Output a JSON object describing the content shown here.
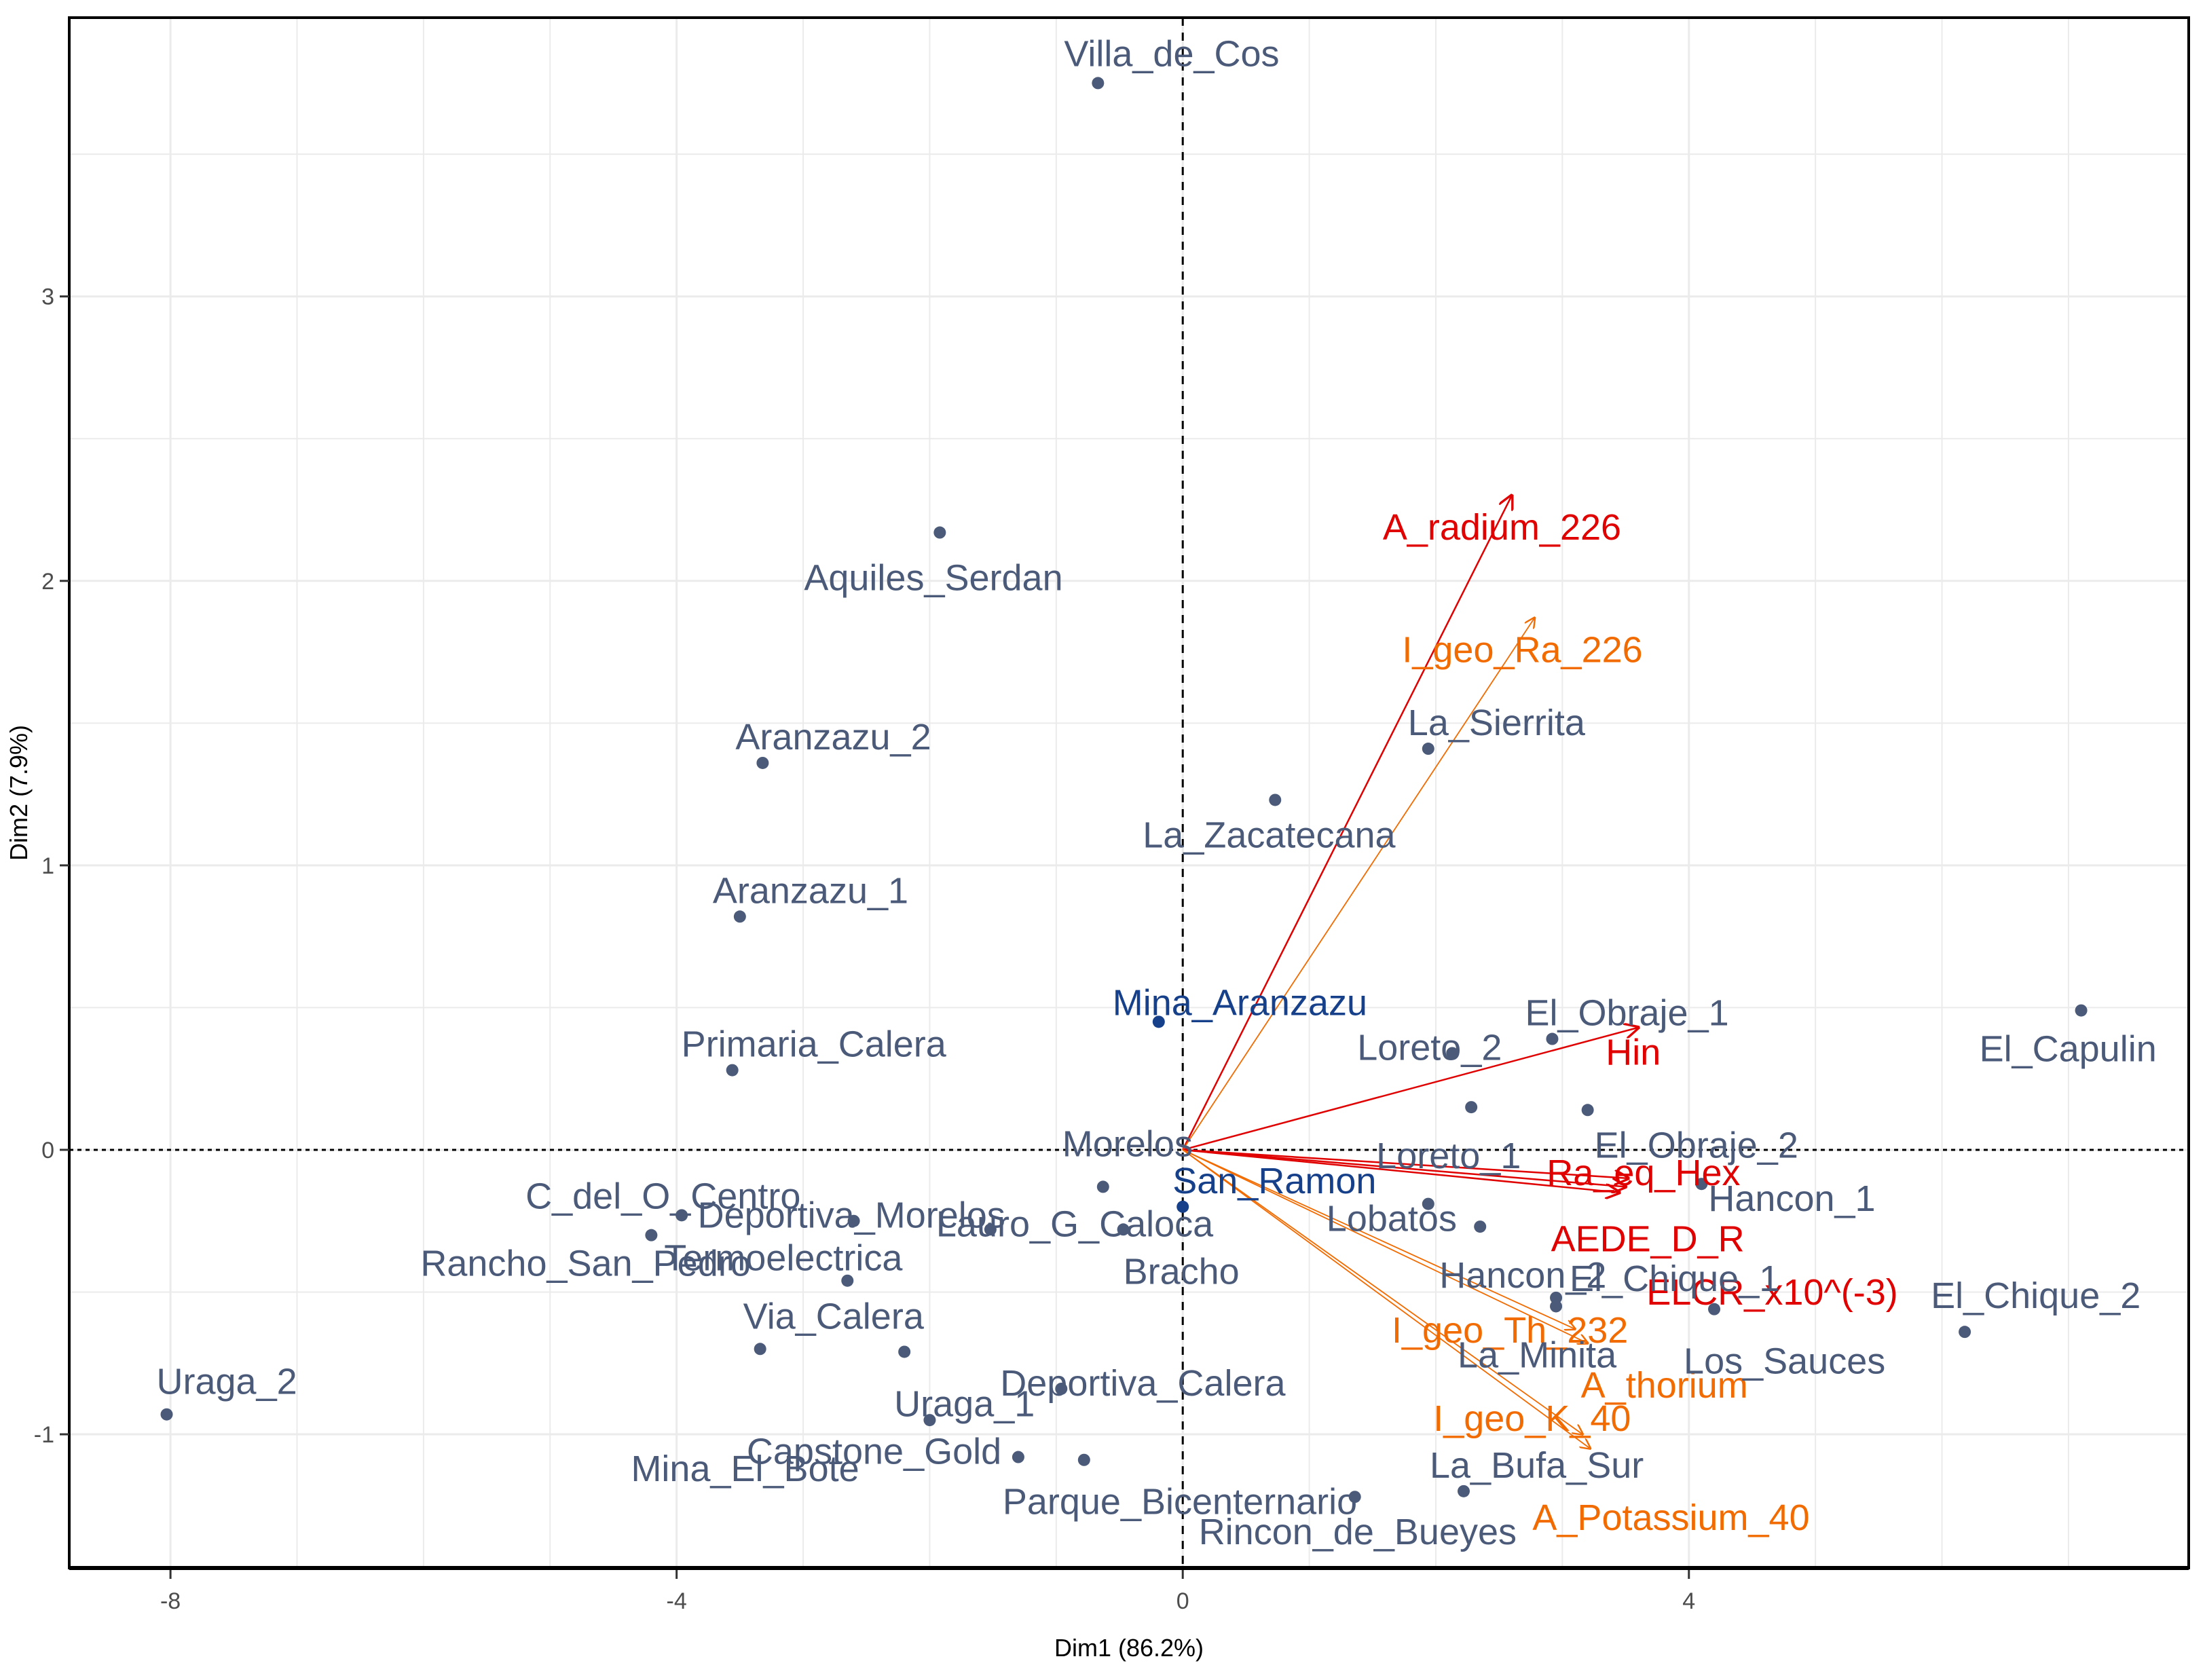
{
  "chart_data": {
    "type": "scatter",
    "subtype": "pca-biplot",
    "title": "",
    "xlabel": "Dim1 (86.2%)",
    "ylabel": "Dim2 (7.9%)",
    "xlim": [
      -8.8,
      7.95
    ],
    "ylim": [
      -1.47,
      3.98
    ],
    "xticks": [
      -8,
      -4,
      0,
      4
    ],
    "yticks": [
      -1,
      0,
      1,
      2,
      3
    ],
    "grid": true,
    "colors": {
      "individual": "#4a5a78",
      "highlight": "#17408b",
      "variable_red": "#e00000",
      "variable_orange": "#f26b00",
      "zero_line": "#000000"
    },
    "individuals": [
      {
        "label": "Villa_de_Cos",
        "x": -0.67,
        "y": 3.75
      },
      {
        "label": "Aquiles_Serdan",
        "x": -1.92,
        "y": 2.17
      },
      {
        "label": "Aranzazu_2",
        "x": -3.32,
        "y": 1.36
      },
      {
        "label": "Aranzazu_1",
        "x": -3.5,
        "y": 0.82
      },
      {
        "label": "La_Zacatecana",
        "x": 0.73,
        "y": 1.23
      },
      {
        "label": "La_Sierrita",
        "x": 1.94,
        "y": 1.41
      },
      {
        "label": "Mina_Aranzazu",
        "x": -0.19,
        "y": 0.45,
        "highlight": true
      },
      {
        "label": "Primaria_Calera",
        "x": -3.56,
        "y": 0.28
      },
      {
        "label": "Loreto_2",
        "x": 2.13,
        "y": 0.34
      },
      {
        "label": "El_Obraje_1",
        "x": 2.92,
        "y": 0.39
      },
      {
        "label": "El_Capulin",
        "x": 7.1,
        "y": 0.49
      },
      {
        "label": "Loreto_1",
        "x": 2.28,
        "y": 0.15
      },
      {
        "label": "El_Obraje_2",
        "x": 3.2,
        "y": 0.14
      },
      {
        "label": "Hancon_1",
        "x": 4.1,
        "y": -0.12
      },
      {
        "label": "Morelos",
        "x": -0.63,
        "y": -0.13
      },
      {
        "label": "San_Ramon",
        "x": 0.0,
        "y": -0.2,
        "highlight": true
      },
      {
        "label": "Lobatos",
        "x": 1.94,
        "y": -0.19
      },
      {
        "label": "C_del_O_Centro",
        "x": -3.96,
        "y": -0.23
      },
      {
        "label": "Deportiva_Morelos",
        "x": -2.6,
        "y": -0.25
      },
      {
        "label": "Lauro_G_Caloca",
        "x": -1.52,
        "y": -0.28
      },
      {
        "label": "Bracho",
        "x": -0.47,
        "y": -0.28
      },
      {
        "label": "Rancho_San_Pedro",
        "x": -4.2,
        "y": -0.3
      },
      {
        "label": "Termoelectrica",
        "x": -2.65,
        "y": -0.46
      },
      {
        "label": "Hancon_2",
        "x": 2.35,
        "y": -0.27
      },
      {
        "label": "El_Chique_1",
        "x": 2.95,
        "y": -0.52
      },
      {
        "label": "Los_Sauces",
        "x": 4.2,
        "y": -0.56
      },
      {
        "label": "El_Chique_2",
        "x": 6.18,
        "y": -0.64
      },
      {
        "label": "La_Minita",
        "x": 2.95,
        "y": -0.55
      },
      {
        "label": "Via_Calera",
        "x": -3.34,
        "y": -0.7
      },
      {
        "label": "Uraga_1",
        "x": -2.2,
        "y": -0.71
      },
      {
        "label": "Mina_El_Bote",
        "x": -2.0,
        "y": -0.95
      },
      {
        "label": "Deportiva_Calera",
        "x": -0.96,
        "y": -0.84
      },
      {
        "label": "Uraga_2",
        "x": -8.03,
        "y": -0.93
      },
      {
        "label": "Capstone_Gold",
        "x": -1.3,
        "y": -1.08
      },
      {
        "label": "Parque_Bicenternario",
        "x": -0.78,
        "y": -1.09
      },
      {
        "label": "La_Bufa_Sur",
        "x": 2.22,
        "y": -1.2
      },
      {
        "label": "Rincon_de_Bueyes",
        "x": 1.36,
        "y": -1.22
      }
    ],
    "variables": [
      {
        "label": "A_radium_226",
        "x": 2.6,
        "y": 2.3,
        "group": "red"
      },
      {
        "label": "I_geo_Ra_226",
        "x": 2.78,
        "y": 1.87,
        "group": "orange"
      },
      {
        "label": "Hin",
        "x": 3.6,
        "y": 0.43,
        "group": "red"
      },
      {
        "label": "Ra_eq_Hex",
        "x": 3.52,
        "y": -0.1,
        "group": "red"
      },
      {
        "label": "AEDE_D_R",
        "x": 3.5,
        "y": -0.13,
        "group": "red"
      },
      {
        "label": "ELCR_x10^(-3)",
        "x": 3.45,
        "y": -0.15,
        "group": "red"
      },
      {
        "label": "I_geo_Th_232",
        "x": 3.1,
        "y": -0.63,
        "group": "orange"
      },
      {
        "label": "A_thorium",
        "x": 3.2,
        "y": -0.68,
        "group": "orange"
      },
      {
        "label": "I_geo_K_40",
        "x": 3.16,
        "y": -1.0,
        "group": "orange"
      },
      {
        "label": "A_Potassium_40",
        "x": 3.22,
        "y": -1.05,
        "group": "orange"
      }
    ]
  }
}
